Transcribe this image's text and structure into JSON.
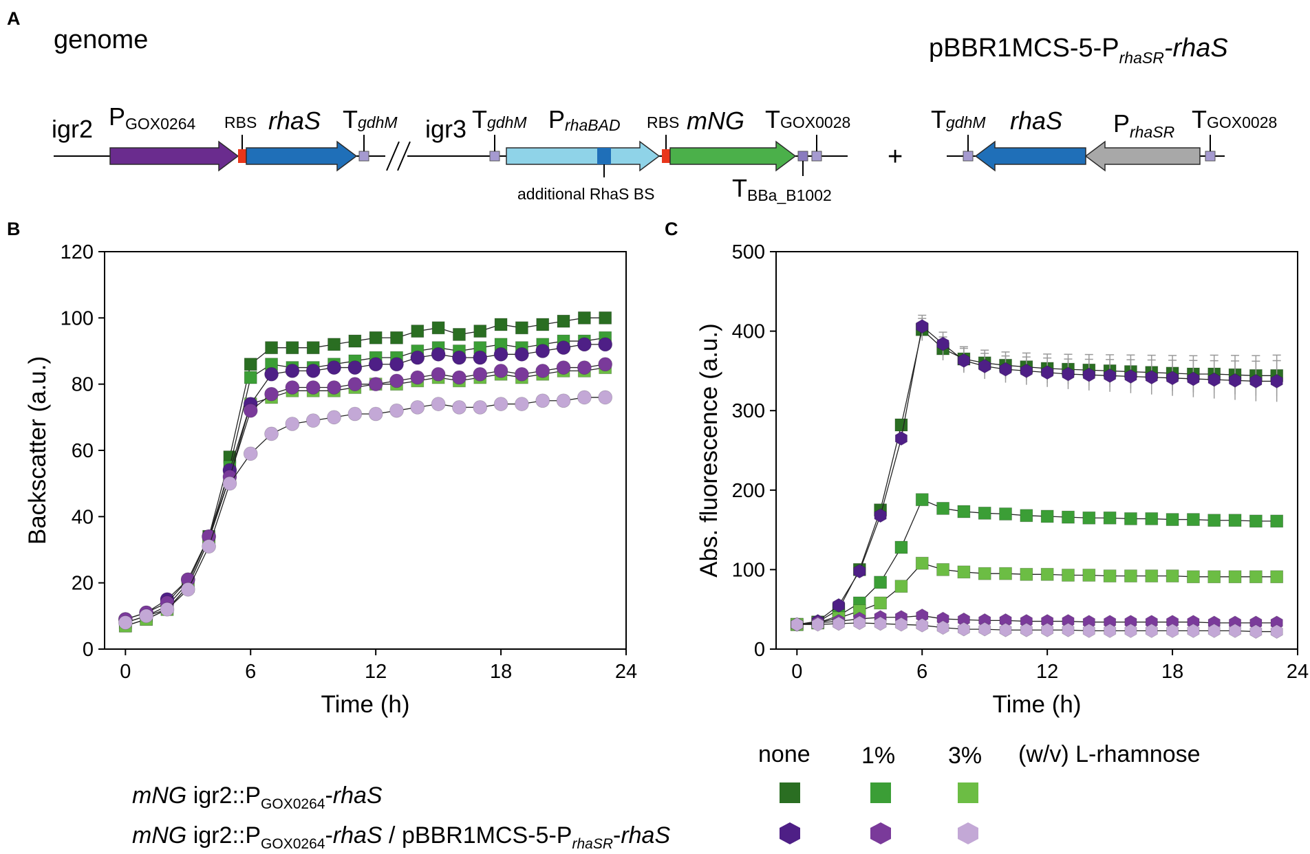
{
  "panels": {
    "a": "A",
    "b": "B",
    "c": "C"
  },
  "construct": {
    "genome_label": "genome",
    "plasmid_label": {
      "main": "pBBR1MCS-5-P",
      "sub": "rhaSR",
      "tail": "-rhaS"
    },
    "igr2": "igr2",
    "igr3": "igr3",
    "promoter_gox0264": {
      "main": "P",
      "sub": "GOX0264"
    },
    "rbs1": "RBS",
    "rhaS1": "rhaS",
    "t_gdhm1": {
      "main": "T",
      "sub": "gdhM"
    },
    "t_gdhm2": {
      "main": "T",
      "sub": "gdhM"
    },
    "p_rhabad": {
      "main": "P",
      "sub": "rhaBAD"
    },
    "rbs2": "RBS",
    "mng": "mNG",
    "t_gox0028_1": {
      "main": "T",
      "sub": "GOX0028"
    },
    "additional_bs": "additional RhaS BS",
    "t_bba": {
      "main": "T",
      "sub": "BBa_B1002"
    },
    "plus": "+",
    "t_gdhm3": {
      "main": "T",
      "sub": "gdhM"
    },
    "rhaS2": "rhaS",
    "p_rhasr": {
      "main": "P",
      "sub": "rhaSR"
    },
    "t_gox0028_2": {
      "main": "T",
      "sub": "GOX0028"
    },
    "colors": {
      "purple": "#6a2c8e",
      "blue": "#1f6fb8",
      "lightblue": "#8fd3e8",
      "green": "#4bb04a",
      "gray": "#a8a8a8",
      "red": "#e8361b",
      "terminator": "#a59ad0"
    }
  },
  "legend": {
    "col_none": "none",
    "col_1": "1%",
    "col_3": "3%",
    "col_unit": "(w/v) L-rhamnose",
    "row1": {
      "italic": "mNG",
      "a": " igr2::P",
      "sub": "GOX0264",
      "b": "-",
      "italic2": "rhaS"
    },
    "row2": {
      "italic": "mNG",
      "a": " igr2::P",
      "sub": "GOX0264",
      "b": "-",
      "italic2": "rhaS",
      "c": " / pBBR1MCS-5-P",
      "sub2": "rhaSR",
      "d": "-",
      "italic3": "rhaS"
    },
    "colors": {
      "green_none": "#2a6e22",
      "green_1": "#3b9e36",
      "green_3": "#6cbd44",
      "purple_none": "#4e1f86",
      "purple_1": "#7a3a9a",
      "purple_3": "#c3a8d6"
    }
  },
  "chart_data": [
    {
      "type": "line",
      "panel": "B",
      "xlabel": "Time (h)",
      "ylabel": "Backscatter (a.u.)",
      "xlim": [
        -1,
        24
      ],
      "ylim": [
        0,
        120
      ],
      "xticks": [
        0,
        6,
        12,
        18,
        24
      ],
      "yticks": [
        0,
        20,
        40,
        60,
        80,
        100,
        120
      ],
      "x": [
        0,
        1,
        2,
        3,
        4,
        5,
        6,
        7,
        8,
        9,
        10,
        11,
        12,
        13,
        14,
        15,
        16,
        17,
        18,
        19,
        20,
        21,
        22,
        23
      ],
      "series": [
        {
          "name": "mNG igr2::PGOX0264-rhaS, none",
          "marker": "square",
          "color": "#2a6e22",
          "values": [
            8,
            10,
            13,
            20,
            34,
            58,
            86,
            91,
            91,
            91,
            92,
            93,
            94,
            94,
            96,
            97,
            95,
            96,
            98,
            97,
            98,
            99,
            100,
            100
          ]
        },
        {
          "name": "mNG igr2::PGOX0264-rhaS, 1%",
          "marker": "square",
          "color": "#3b9e36",
          "values": [
            7,
            9,
            12,
            19,
            33,
            55,
            82,
            86,
            85,
            85,
            86,
            87,
            88,
            88,
            90,
            91,
            90,
            91,
            92,
            91,
            92,
            93,
            93,
            94
          ]
        },
        {
          "name": "mNG igr2::PGOX0264-rhaS, 3%",
          "marker": "square",
          "color": "#6cbd44",
          "values": [
            7,
            9,
            12,
            19,
            33,
            52,
            74,
            76,
            78,
            78,
            78,
            79,
            80,
            80,
            81,
            82,
            81,
            82,
            83,
            82,
            83,
            84,
            84,
            85
          ]
        },
        {
          "name": "mNG igr2::PGOX0264-rhaS / pBBR1MCS-5-PrhaSR-rhaS, none",
          "marker": "circle",
          "color": "#4e1f86",
          "values": [
            9,
            11,
            15,
            21,
            34,
            54,
            74,
            83,
            84,
            84,
            85,
            85,
            86,
            86,
            88,
            89,
            88,
            88,
            89,
            89,
            90,
            91,
            92,
            92
          ]
        },
        {
          "name": "mNG igr2::PGOX0264-rhaS / pBBR1MCS-5-PrhaSR-rhaS, 1%",
          "marker": "circle",
          "color": "#7a3a9a",
          "values": [
            9,
            11,
            14,
            21,
            34,
            52,
            72,
            77,
            79,
            79,
            79,
            80,
            80,
            81,
            82,
            83,
            82,
            83,
            84,
            83,
            84,
            85,
            85,
            86
          ]
        },
        {
          "name": "mNG igr2::PGOX0264-rhaS / pBBR1MCS-5-PrhaSR-rhaS, 3%",
          "marker": "circle",
          "color": "#c3a8d6",
          "values": [
            8,
            10,
            12,
            18,
            31,
            50,
            59,
            65,
            68,
            69,
            70,
            71,
            71,
            72,
            73,
            74,
            73,
            73,
            74,
            74,
            75,
            75,
            76,
            76
          ]
        }
      ]
    },
    {
      "type": "line",
      "panel": "C",
      "xlabel": "Time (h)",
      "ylabel": "Abs. fluorescence (a.u.)",
      "xlim": [
        -1,
        24
      ],
      "ylim": [
        0,
        500
      ],
      "xticks": [
        0,
        6,
        12,
        18,
        24
      ],
      "yticks": [
        0,
        100,
        200,
        300,
        400,
        500
      ],
      "x": [
        0,
        1,
        2,
        3,
        4,
        5,
        6,
        7,
        8,
        9,
        10,
        11,
        12,
        13,
        14,
        15,
        16,
        17,
        18,
        19,
        20,
        21,
        22,
        23
      ],
      "series": [
        {
          "name": "mNG igr2::PGOX0264-rhaS, none",
          "marker": "square",
          "color": "#2a6e22",
          "values": [
            31,
            34,
            50,
            100,
            175,
            282,
            402,
            378,
            365,
            360,
            357,
            355,
            353,
            352,
            351,
            350,
            349,
            348,
            347,
            346,
            346,
            345,
            344,
            344
          ]
        },
        {
          "name": "mNG igr2::PGOX0264-rhaS, 1%",
          "marker": "square",
          "color": "#3b9e36",
          "values": [
            31,
            33,
            42,
            58,
            84,
            128,
            188,
            177,
            173,
            171,
            170,
            168,
            167,
            166,
            165,
            165,
            164,
            164,
            163,
            163,
            162,
            162,
            161,
            161
          ]
        },
        {
          "name": "mNG igr2::PGOX0264-rhaS, 3%",
          "marker": "square",
          "color": "#6cbd44",
          "values": [
            31,
            33,
            39,
            48,
            58,
            79,
            108,
            100,
            97,
            95,
            95,
            94,
            94,
            93,
            93,
            92,
            92,
            92,
            92,
            91,
            91,
            91,
            91,
            91
          ]
        },
        {
          "name": "mNG igr2::PGOX0264-rhaS / pBBR1MCS-5-PrhaSR-rhaS, none",
          "marker": "hexagon",
          "color": "#4e1f86",
          "values": [
            31,
            35,
            55,
            98,
            168,
            265,
            406,
            384,
            363,
            356,
            352,
            350,
            348,
            346,
            345,
            344,
            343,
            342,
            341,
            340,
            339,
            338,
            337,
            337
          ]
        },
        {
          "name": "mNG igr2::PGOX0264-rhaS / pBBR1MCS-5-PrhaSR-rhaS, 1%",
          "marker": "hexagon",
          "color": "#7a3a9a",
          "values": [
            31,
            33,
            35,
            38,
            40,
            40,
            42,
            38,
            37,
            36,
            36,
            35,
            35,
            35,
            34,
            34,
            34,
            34,
            34,
            34,
            33,
            33,
            33,
            33
          ]
        },
        {
          "name": "mNG igr2::PGOX0264-rhaS / pBBR1MCS-5-PrhaSR-rhaS, 3%",
          "marker": "hexagon",
          "color": "#c3a8d6",
          "values": [
            31,
            31,
            32,
            33,
            32,
            31,
            30,
            27,
            25,
            25,
            24,
            24,
            24,
            24,
            23,
            23,
            23,
            23,
            23,
            23,
            23,
            23,
            22,
            22
          ]
        }
      ]
    }
  ]
}
